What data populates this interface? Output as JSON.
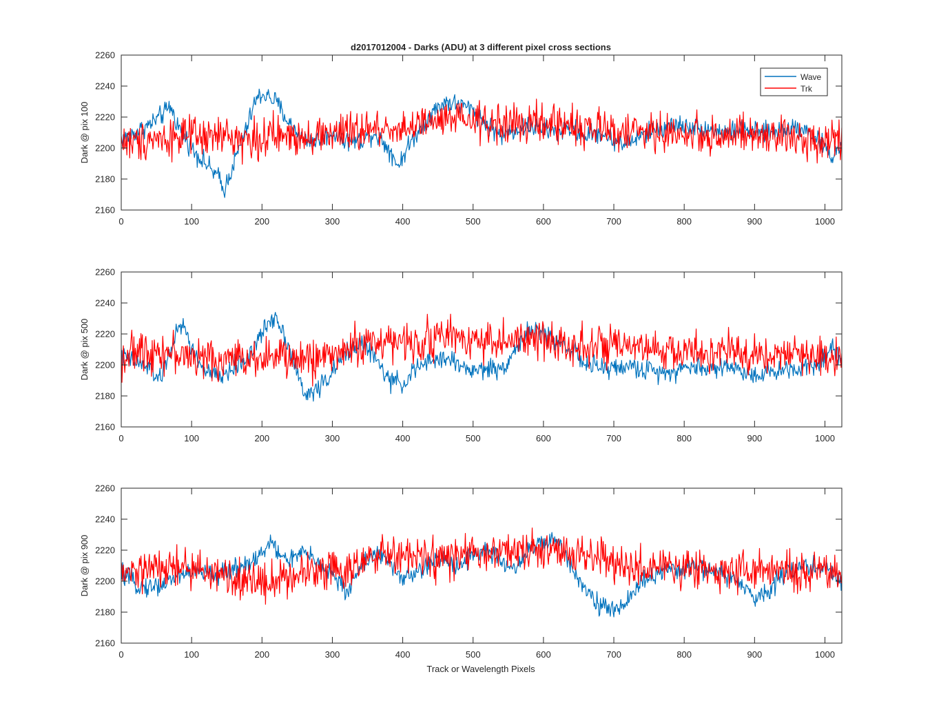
{
  "figure": {
    "title": "d2017012004 - Darks (ADU) at 3 different pixel cross sections",
    "xlabel": "Track or Wavelength Pixels"
  },
  "legend": {
    "placement": "top-right",
    "entries": [
      {
        "name": "Wave",
        "color": "#0072BD"
      },
      {
        "name": "Trk",
        "color": "#FF0000"
      }
    ]
  },
  "chart_data": [
    {
      "type": "line",
      "ylabel": "Dark @ pix 100",
      "xlim": [
        0,
        1024
      ],
      "ylim": [
        2160,
        2260
      ],
      "xticks": [
        0,
        100,
        200,
        300,
        400,
        500,
        600,
        700,
        800,
        900,
        1000
      ],
      "yticks": [
        2160,
        2180,
        2200,
        2220,
        2240,
        2260
      ],
      "grid": false,
      "series": [
        {
          "name": "Wave",
          "color": "#0072BD",
          "x": [
            0,
            20,
            40,
            60,
            70,
            80,
            100,
            120,
            140,
            145,
            160,
            180,
            190,
            200,
            210,
            220,
            240,
            260,
            280,
            300,
            320,
            340,
            360,
            380,
            395,
            400,
            420,
            440,
            460,
            480,
            500,
            520,
            540,
            560,
            580,
            600,
            620,
            640,
            660,
            680,
            700,
            720,
            740,
            760,
            780,
            800,
            820,
            840,
            860,
            880,
            900,
            920,
            940,
            960,
            980,
            1000,
            1010,
            1024
          ],
          "y": [
            2205,
            2210,
            2215,
            2222,
            2227,
            2215,
            2200,
            2190,
            2180,
            2172,
            2190,
            2215,
            2230,
            2235,
            2233,
            2230,
            2215,
            2205,
            2205,
            2210,
            2205,
            2205,
            2210,
            2200,
            2188,
            2195,
            2210,
            2222,
            2230,
            2228,
            2225,
            2215,
            2208,
            2212,
            2214,
            2212,
            2210,
            2213,
            2208,
            2210,
            2205,
            2203,
            2208,
            2212,
            2214,
            2215,
            2213,
            2212,
            2210,
            2212,
            2210,
            2210,
            2212,
            2214,
            2210,
            2200,
            2194,
            2203
          ]
        },
        {
          "name": "Trk",
          "color": "#FF0000",
          "x": [
            0,
            20,
            40,
            60,
            80,
            100,
            120,
            140,
            160,
            180,
            200,
            220,
            240,
            260,
            280,
            300,
            320,
            340,
            360,
            380,
            400,
            420,
            440,
            460,
            480,
            500,
            520,
            540,
            560,
            580,
            600,
            620,
            640,
            660,
            680,
            700,
            720,
            740,
            760,
            780,
            800,
            820,
            840,
            860,
            880,
            900,
            920,
            940,
            960,
            980,
            1000,
            1024
          ],
          "y": [
            2205,
            2203,
            2207,
            2206,
            2208,
            2207,
            2206,
            2208,
            2207,
            2205,
            2206,
            2208,
            2207,
            2209,
            2208,
            2210,
            2209,
            2211,
            2212,
            2213,
            2213,
            2214,
            2216,
            2217,
            2218,
            2217,
            2216,
            2216,
            2215,
            2216,
            2215,
            2216,
            2215,
            2213,
            2212,
            2211,
            2211,
            2210,
            2210,
            2209,
            2209,
            2209,
            2208,
            2208,
            2208,
            2207,
            2207,
            2207,
            2206,
            2206,
            2206,
            2207
          ]
        }
      ]
    },
    {
      "type": "line",
      "ylabel": "Dark @ pix 500",
      "xlim": [
        0,
        1024
      ],
      "ylim": [
        2160,
        2260
      ],
      "xticks": [
        0,
        100,
        200,
        300,
        400,
        500,
        600,
        700,
        800,
        900,
        1000
      ],
      "yticks": [
        2160,
        2180,
        2200,
        2220,
        2240,
        2260
      ],
      "grid": false,
      "series": [
        {
          "name": "Wave",
          "color": "#0072BD",
          "x": [
            0,
            20,
            40,
            55,
            70,
            80,
            90,
            100,
            120,
            140,
            160,
            180,
            200,
            210,
            220,
            240,
            260,
            280,
            300,
            320,
            340,
            360,
            380,
            400,
            420,
            440,
            460,
            480,
            500,
            520,
            540,
            560,
            580,
            600,
            620,
            640,
            660,
            680,
            700,
            720,
            740,
            760,
            780,
            800,
            820,
            840,
            860,
            880,
            900,
            920,
            940,
            960,
            980,
            1000,
            1010,
            1024
          ],
          "y": [
            2205,
            2202,
            2198,
            2190,
            2210,
            2222,
            2225,
            2210,
            2195,
            2192,
            2198,
            2205,
            2220,
            2228,
            2232,
            2210,
            2180,
            2185,
            2195,
            2208,
            2215,
            2205,
            2190,
            2188,
            2198,
            2202,
            2205,
            2200,
            2196,
            2198,
            2197,
            2210,
            2222,
            2220,
            2215,
            2210,
            2200,
            2198,
            2198,
            2199,
            2197,
            2196,
            2196,
            2198,
            2199,
            2197,
            2200,
            2196,
            2194,
            2195,
            2197,
            2198,
            2200,
            2205,
            2212,
            2204
          ]
        },
        {
          "name": "Trk",
          "color": "#FF0000",
          "x": [
            0,
            20,
            40,
            60,
            80,
            100,
            120,
            140,
            160,
            180,
            200,
            220,
            240,
            260,
            280,
            300,
            320,
            340,
            360,
            380,
            400,
            420,
            440,
            460,
            480,
            500,
            520,
            540,
            560,
            580,
            600,
            620,
            640,
            660,
            680,
            700,
            720,
            740,
            760,
            780,
            800,
            820,
            840,
            860,
            880,
            900,
            920,
            940,
            960,
            980,
            1000,
            1024
          ],
          "y": [
            2205,
            2208,
            2210,
            2209,
            2207,
            2205,
            2204,
            2203,
            2204,
            2205,
            2206,
            2205,
            2204,
            2203,
            2205,
            2207,
            2210,
            2213,
            2215,
            2216,
            2213,
            2215,
            2217,
            2219,
            2218,
            2217,
            2216,
            2215,
            2215,
            2216,
            2216,
            2215,
            2214,
            2213,
            2212,
            2211,
            2210,
            2210,
            2209,
            2209,
            2208,
            2208,
            2208,
            2208,
            2207,
            2207,
            2207,
            2207,
            2206,
            2206,
            2206,
            2205
          ]
        }
      ]
    },
    {
      "type": "line",
      "ylabel": "Dark @ pix 900",
      "xlim": [
        0,
        1024
      ],
      "ylim": [
        2160,
        2260
      ],
      "xticks": [
        0,
        100,
        200,
        300,
        400,
        500,
        600,
        700,
        800,
        900,
        1000
      ],
      "yticks": [
        2160,
        2180,
        2200,
        2220,
        2240,
        2260
      ],
      "grid": false,
      "series": [
        {
          "name": "Wave",
          "color": "#0072BD",
          "x": [
            0,
            20,
            40,
            60,
            80,
            100,
            120,
            140,
            160,
            180,
            200,
            210,
            215,
            220,
            240,
            260,
            280,
            300,
            320,
            340,
            360,
            380,
            400,
            420,
            440,
            460,
            480,
            500,
            520,
            540,
            560,
            580,
            600,
            620,
            640,
            660,
            680,
            700,
            720,
            740,
            760,
            780,
            800,
            820,
            840,
            860,
            880,
            900,
            920,
            940,
            960,
            980,
            1000,
            1010,
            1024
          ],
          "y": [
            2205,
            2198,
            2196,
            2198,
            2204,
            2206,
            2205,
            2204,
            2208,
            2212,
            2218,
            2222,
            2230,
            2218,
            2214,
            2218,
            2212,
            2205,
            2192,
            2210,
            2218,
            2212,
            2202,
            2205,
            2212,
            2214,
            2210,
            2218,
            2220,
            2212,
            2208,
            2222,
            2224,
            2226,
            2210,
            2195,
            2185,
            2180,
            2188,
            2200,
            2205,
            2206,
            2208,
            2210,
            2206,
            2204,
            2198,
            2188,
            2195,
            2205,
            2208,
            2210,
            2208,
            2205,
            2200
          ]
        },
        {
          "name": "Trk",
          "color": "#FF0000",
          "x": [
            0,
            20,
            40,
            60,
            80,
            100,
            120,
            140,
            160,
            180,
            200,
            220,
            240,
            260,
            280,
            300,
            320,
            340,
            360,
            380,
            400,
            420,
            440,
            460,
            480,
            500,
            520,
            540,
            560,
            580,
            600,
            620,
            640,
            660,
            680,
            700,
            720,
            740,
            760,
            780,
            800,
            820,
            840,
            860,
            880,
            900,
            920,
            940,
            960,
            980,
            1000,
            1024
          ],
          "y": [
            2203,
            2206,
            2207,
            2208,
            2209,
            2208,
            2206,
            2204,
            2202,
            2200,
            2200,
            2201,
            2203,
            2206,
            2208,
            2210,
            2208,
            2210,
            2215,
            2217,
            2216,
            2215,
            2214,
            2214,
            2216,
            2217,
            2218,
            2218,
            2219,
            2219,
            2218,
            2220,
            2219,
            2217,
            2215,
            2211,
            2209,
            2208,
            2208,
            2208,
            2209,
            2208,
            2207,
            2207,
            2208,
            2207,
            2206,
            2205,
            2206,
            2206,
            2205,
            2205
          ]
        }
      ]
    }
  ]
}
